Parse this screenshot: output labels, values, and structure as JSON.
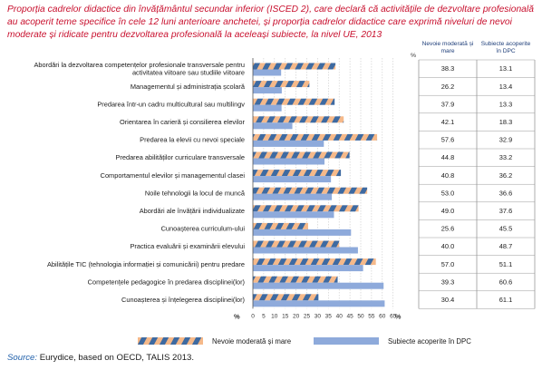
{
  "title": "Proporția cadrelor didactice din învățământul secundar inferior (ISCED 2), care declară că activitățile de dezvoltare profesională au acoperit teme specifice în cele 12 luni anterioare anchetei, și proporția cadrelor didactice care exprimă niveluri de nevoi moderate și ridicate pentru dezvoltarea profesională la aceleași subiecte, la nivel UE, 2013",
  "source_label": "Source:",
  "source_text": " Eurydice, based on OECD, TALIS 2013.",
  "colors": {
    "need_orange": "#f5b98a",
    "need_blue": "#3e6aa1",
    "covered": "#8eaadb",
    "title": "#c8102e",
    "source": "#1f5faa"
  },
  "chart_data": {
    "type": "bar",
    "orientation": "horizontal",
    "categories": [
      [
        "Abordări la dezvoltarea competențelor profesionale transversale pentru",
        "activitatea viitoare sau studiile viitoare"
      ],
      [
        "Managementul și administrația școlară"
      ],
      [
        "Predarea într-un cadru multicultural sau multilingv"
      ],
      [
        "Orientarea în carieră și consilierea elevilor"
      ],
      [
        "Predarea la elevii cu nevoi speciale"
      ],
      [
        "Predarea abilităților curriculare transversale"
      ],
      [
        "Comportamentul elevilor și managementul clasei"
      ],
      [
        "Noile tehnologii la locul de muncă"
      ],
      [
        "Abordări ale învățării individualizate"
      ],
      [
        "Cunoașterea curriculum-ului"
      ],
      [
        "Practica evaluării și examinării elevului"
      ],
      [
        "Abilitățile TIC (tehnologia informației și comunicării) pentru predare"
      ],
      [
        "Competențele pedagogice în predarea disciplinei(lor)"
      ],
      [
        "Cunoașterea și înțelegerea disciplinei(lor)"
      ]
    ],
    "series": [
      {
        "name": "Nevoie moderată și mare",
        "values": [
          38.3,
          26.2,
          37.9,
          42.1,
          57.6,
          44.8,
          40.8,
          53.0,
          49.0,
          25.6,
          40.0,
          57.0,
          39.3,
          30.4
        ]
      },
      {
        "name": "Subiecte acoperite în DPC",
        "values": [
          13.1,
          13.4,
          13.3,
          18.3,
          32.9,
          33.2,
          36.2,
          36.6,
          37.6,
          45.5,
          48.7,
          51.1,
          60.6,
          61.1
        ]
      }
    ],
    "table_headers": [
      "Nevoie moderată și mare",
      "Subiecte acoperite în DPC"
    ],
    "table_unit": "%",
    "x_ticks": [
      "0",
      "5",
      "10",
      "15",
      "20",
      "25",
      "30",
      "35",
      "40",
      "45",
      "50",
      "55",
      "60",
      "65"
    ],
    "x_unit": "%",
    "xlim": [
      0,
      65
    ],
    "grid": true,
    "legend_position": "bottom"
  }
}
